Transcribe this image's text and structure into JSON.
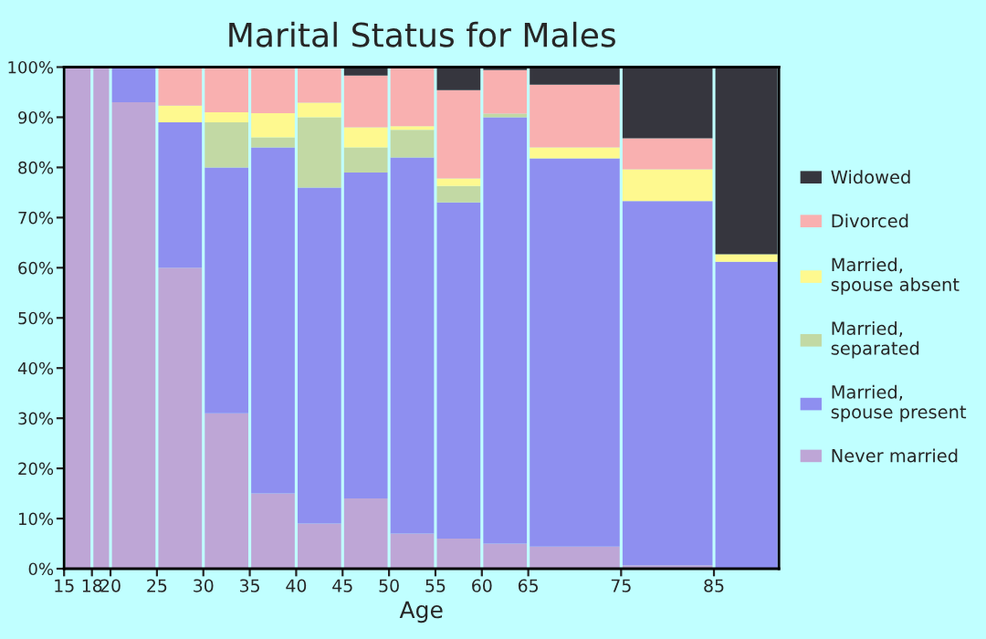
{
  "chart_data": {
    "type": "bar",
    "title": "Marital Status for Males",
    "xlabel": "Age",
    "stacked": true,
    "x": [
      16.5,
      19,
      22.5,
      27.5,
      32.5,
      37.5,
      42.5,
      47.5,
      52.5,
      57.5,
      62.5,
      70,
      80,
      88.5
    ],
    "xlim": [
      15,
      92
    ],
    "xticks": [
      15,
      18,
      20,
      25,
      30,
      35,
      40,
      45,
      50,
      55,
      60,
      65,
      75,
      85
    ],
    "ylim": [
      0,
      100
    ],
    "yticks": [
      {
        "value": 0,
        "label": "0%"
      },
      {
        "value": 10,
        "label": "10%"
      },
      {
        "value": 20,
        "label": "20%"
      },
      {
        "value": 30,
        "label": "30%"
      },
      {
        "value": 40,
        "label": "40%"
      },
      {
        "value": 50,
        "label": "50%"
      },
      {
        "value": 60,
        "label": "60%"
      },
      {
        "value": 70,
        "label": "70%"
      },
      {
        "value": 80,
        "label": "80%"
      },
      {
        "value": 90,
        "label": "90%"
      },
      {
        "value": 100,
        "label": "100%"
      }
    ],
    "legend": "right",
    "series": [
      {
        "name": "Never married",
        "color": "#bea6d6",
        "values": [
          100,
          100,
          93,
          60,
          31,
          15,
          9,
          14,
          7,
          6,
          5,
          4.4,
          0.7,
          0
        ]
      },
      {
        "name": "Married,\nspouse present",
        "color": "#8e8ff0",
        "values": [
          0,
          0,
          7,
          29,
          49,
          69,
          67,
          65,
          75,
          67,
          85,
          77.4,
          72.6,
          61.2
        ]
      },
      {
        "name": "Married,\nseparated",
        "color": "#c2d9a4",
        "values": [
          0,
          0,
          0,
          0,
          9,
          2,
          14,
          5,
          5.5,
          3.3,
          0.7,
          0,
          0,
          0
        ]
      },
      {
        "name": "Married,\nspouse absent",
        "color": "#fef98f",
        "values": [
          0,
          0,
          0,
          3.3,
          2,
          4.8,
          2.9,
          4,
          0.7,
          1.5,
          0,
          2.2,
          6.3,
          1.5
        ]
      },
      {
        "name": "Divorced",
        "color": "#f9b0b0",
        "values": [
          0,
          0,
          0,
          7.7,
          9,
          9.2,
          7.1,
          10.3,
          11.8,
          17.6,
          8.7,
          12.5,
          6.2,
          0
        ]
      },
      {
        "name": "Widowed",
        "color": "#36363e",
        "values": [
          0,
          0,
          0,
          0,
          0,
          0,
          0,
          1.7,
          0,
          4.6,
          0.6,
          3.5,
          14.2,
          37.3
        ]
      }
    ]
  }
}
